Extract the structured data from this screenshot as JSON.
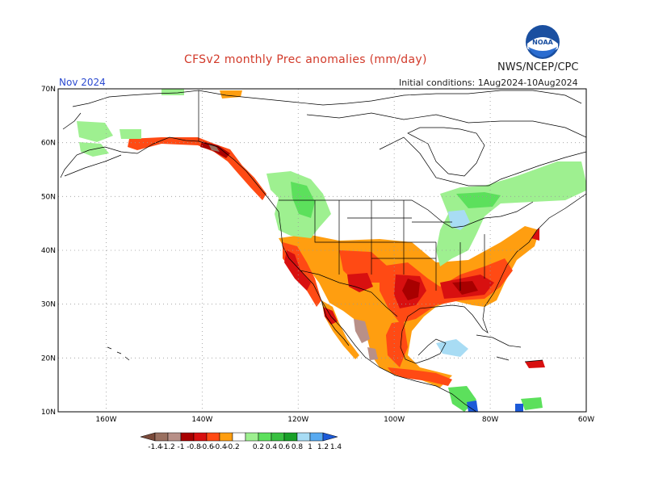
{
  "header": {
    "title": "CFSv2 monthly Prec anomalies (mm/day)",
    "agency": "NWS/NCEP/CPC",
    "valid_month": "Nov 2024",
    "initial_conditions": "Initial conditions: 1Aug2024-10Aug2024",
    "logo_text": "NOAA"
  },
  "map": {
    "lat_labels": [
      "70N",
      "60N",
      "50N",
      "40N",
      "30N",
      "20N",
      "10N"
    ],
    "lon_labels": [
      "160W",
      "140W",
      "120W",
      "100W",
      "80W",
      "60W"
    ],
    "lat_values": [
      70,
      60,
      50,
      40,
      30,
      20,
      10
    ],
    "lon_values": [
      -160,
      -140,
      -120,
      -100,
      -80,
      -60
    ]
  },
  "legend": {
    "tick_labels": [
      "-1.4",
      "-1.2",
      "-1",
      "-0.8",
      "-0.6",
      "-0.4",
      "-0.2",
      "0.2",
      "0.4",
      "0.6",
      "0.8",
      "1",
      "1.2",
      "1.4"
    ],
    "colors": [
      "#7a4a3a",
      "#9a7060",
      "#b89088",
      "#a80000",
      "#d81010",
      "#ff4a14",
      "#ff9e10",
      "#ffffff",
      "#9ef090",
      "#5ce05c",
      "#38c040",
      "#18a028",
      "#a8dcf4",
      "#58aaf0",
      "#1c5ad8"
    ]
  }
}
